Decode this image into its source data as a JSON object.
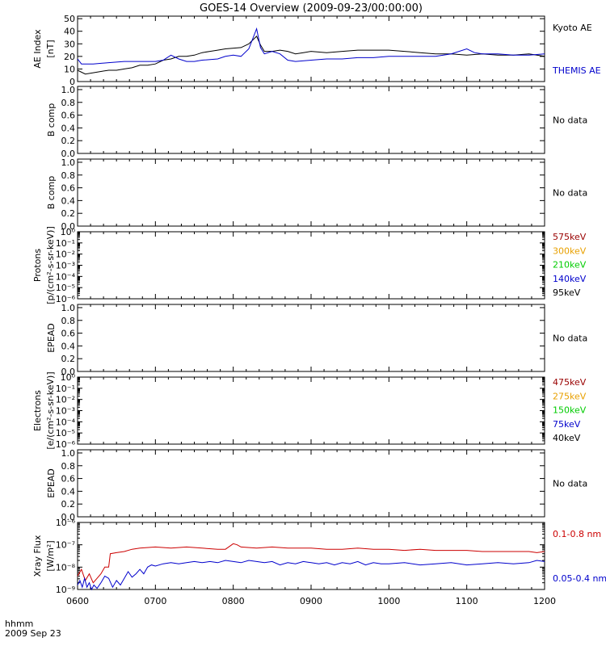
{
  "title": "GOES-14 Overview (2009-09-23/00:00:00)",
  "footer": {
    "time_label": "hhmm",
    "date_label": "2009 Sep 23"
  },
  "x_ticks": [
    "0600",
    "0700",
    "0800",
    "0900",
    "1000",
    "1100",
    "1200"
  ],
  "colors": {
    "black": "#000000",
    "blue": "#0000cc",
    "red": "#cc0000",
    "dark_red": "#990000",
    "orange": "#e8a000",
    "green": "#00cc00"
  },
  "chart_data": [
    {
      "type": "line",
      "ylabel_lines": [
        "AE Index",
        "[nT]"
      ],
      "yticks": [
        "0",
        "10",
        "20",
        "30",
        "40",
        "50"
      ],
      "ylim": [
        0,
        52
      ],
      "x_range": [
        "0600",
        "1200"
      ],
      "legend_placement": "right",
      "series": [
        {
          "name": "Kyoto AE",
          "color": "#000000",
          "points": [
            [
              6.0,
              9
            ],
            [
              6.1,
              6
            ],
            [
              6.2,
              7
            ],
            [
              6.3,
              8
            ],
            [
              6.4,
              9
            ],
            [
              6.5,
              9
            ],
            [
              6.6,
              10
            ],
            [
              6.7,
              11
            ],
            [
              6.8,
              13
            ],
            [
              6.9,
              13
            ],
            [
              7.0,
              14
            ],
            [
              7.1,
              17
            ],
            [
              7.2,
              18
            ],
            [
              7.3,
              20
            ],
            [
              7.4,
              20
            ],
            [
              7.5,
              21
            ],
            [
              7.6,
              23
            ],
            [
              7.7,
              24
            ],
            [
              7.8,
              25
            ],
            [
              7.9,
              26
            ],
            [
              8.1,
              27
            ],
            [
              8.2,
              30
            ],
            [
              8.3,
              36
            ],
            [
              8.35,
              29
            ],
            [
              8.4,
              24
            ],
            [
              8.5,
              24
            ],
            [
              8.6,
              25
            ],
            [
              8.7,
              24
            ],
            [
              8.8,
              22
            ],
            [
              8.9,
              23
            ],
            [
              9.0,
              24
            ],
            [
              9.2,
              23
            ],
            [
              9.4,
              24
            ],
            [
              9.6,
              25
            ],
            [
              9.8,
              25
            ],
            [
              10.0,
              25
            ],
            [
              10.2,
              24
            ],
            [
              10.4,
              23
            ],
            [
              10.6,
              22
            ],
            [
              10.8,
              22
            ],
            [
              11.0,
              21
            ],
            [
              11.2,
              22
            ],
            [
              11.4,
              21
            ],
            [
              11.6,
              21
            ],
            [
              11.8,
              22
            ],
            [
              12.0,
              20
            ]
          ]
        },
        {
          "name": "THEMIS AE",
          "color": "#0000cc",
          "points": [
            [
              6.0,
              18
            ],
            [
              6.05,
              14
            ],
            [
              6.2,
              14
            ],
            [
              6.4,
              15
            ],
            [
              6.6,
              16
            ],
            [
              6.8,
              16
            ],
            [
              7.0,
              16
            ],
            [
              7.1,
              17
            ],
            [
              7.2,
              21
            ],
            [
              7.3,
              18
            ],
            [
              7.4,
              16
            ],
            [
              7.5,
              16
            ],
            [
              7.6,
              17
            ],
            [
              7.8,
              18
            ],
            [
              7.9,
              20
            ],
            [
              8.0,
              21
            ],
            [
              8.1,
              20
            ],
            [
              8.2,
              26
            ],
            [
              8.3,
              42
            ],
            [
              8.35,
              27
            ],
            [
              8.4,
              22
            ],
            [
              8.5,
              24
            ],
            [
              8.6,
              22
            ],
            [
              8.7,
              17
            ],
            [
              8.8,
              16
            ],
            [
              9.0,
              17
            ],
            [
              9.2,
              18
            ],
            [
              9.4,
              18
            ],
            [
              9.6,
              19
            ],
            [
              9.8,
              19
            ],
            [
              10.0,
              20
            ],
            [
              10.2,
              20
            ],
            [
              10.4,
              20
            ],
            [
              10.6,
              20
            ],
            [
              10.8,
              22
            ],
            [
              11.0,
              26
            ],
            [
              11.1,
              23
            ],
            [
              11.2,
              22
            ],
            [
              11.4,
              22
            ],
            [
              11.6,
              21
            ],
            [
              11.8,
              21
            ],
            [
              12.0,
              22
            ]
          ]
        }
      ]
    },
    {
      "type": "line",
      "ylabel_lines": [
        "B comp"
      ],
      "yticks": [
        "0.0",
        "0.2",
        "0.4",
        "0.6",
        "0.8",
        "1.0"
      ],
      "ylim": [
        0,
        1.05
      ],
      "message": "No data"
    },
    {
      "type": "line",
      "ylabel_lines": [
        "B comp"
      ],
      "yticks": [
        "0.0",
        "0.2",
        "0.4",
        "0.6",
        "0.8",
        "1.0"
      ],
      "ylim": [
        0,
        1.05
      ],
      "message": "No data"
    },
    {
      "type": "line",
      "ylabel_lines": [
        "Protons",
        "[p/(cm²-s-sr-keV)]"
      ],
      "yticks": [
        "10⁻⁶",
        "10⁻⁵",
        "10⁻⁴",
        "10⁻³",
        "10⁻²",
        "10⁻¹",
        "10⁰"
      ],
      "ylim": [
        -6,
        0
      ],
      "scale": "log",
      "legend_placement": "right",
      "series": [
        {
          "name": "575keV",
          "color": "#990000"
        },
        {
          "name": "300keV",
          "color": "#e8a000"
        },
        {
          "name": "210keV",
          "color": "#00cc00"
        },
        {
          "name": "140keV",
          "color": "#0000cc"
        },
        {
          "name": "95keV",
          "color": "#000000"
        }
      ]
    },
    {
      "type": "line",
      "ylabel_lines": [
        "EPEAD"
      ],
      "yticks": [
        "0.0",
        "0.2",
        "0.4",
        "0.6",
        "0.8",
        "1.0"
      ],
      "ylim": [
        0,
        1.05
      ],
      "message": "No data"
    },
    {
      "type": "line",
      "ylabel_lines": [
        "Electrons",
        "[e/(cm²-s-sr-keV)]"
      ],
      "yticks": [
        "10⁻⁶",
        "10⁻⁵",
        "10⁻⁴",
        "10⁻³",
        "10⁻²",
        "10⁻¹",
        "10⁰"
      ],
      "ylim": [
        -6,
        0
      ],
      "scale": "log",
      "legend_placement": "right",
      "series": [
        {
          "name": "475keV",
          "color": "#990000"
        },
        {
          "name": "275keV",
          "color": "#e8a000"
        },
        {
          "name": "150keV",
          "color": "#00cc00"
        },
        {
          "name": "75keV",
          "color": "#0000cc"
        },
        {
          "name": "40keV",
          "color": "#000000"
        }
      ]
    },
    {
      "type": "line",
      "ylabel_lines": [
        "EPEAD"
      ],
      "yticks": [
        "0.0",
        "0.2",
        "0.4",
        "0.6",
        "0.8",
        "1.0"
      ],
      "ylim": [
        0,
        1.05
      ],
      "message": "No data"
    },
    {
      "type": "line",
      "ylabel_lines": [
        "Xray Flux",
        "[W/m²]"
      ],
      "yticks": [
        "10⁻⁹",
        "10⁻⁸",
        "10⁻⁷",
        "10⁻⁶"
      ],
      "ylim": [
        -9,
        -6
      ],
      "scale": "log",
      "legend_placement": "right",
      "series": [
        {
          "name": "0.1-0.8 nm",
          "color": "#cc0000",
          "points": [
            [
              6.0,
              -8.4
            ],
            [
              6.05,
              -8.1
            ],
            [
              6.1,
              -8.6
            ],
            [
              6.15,
              -8.3
            ],
            [
              6.2,
              -8.7
            ],
            [
              6.25,
              -8.5
            ],
            [
              6.3,
              -8.3
            ],
            [
              6.35,
              -8.0
            ],
            [
              6.4,
              -8.0
            ],
            [
              6.42,
              -7.4
            ],
            [
              6.5,
              -7.35
            ],
            [
              6.6,
              -7.3
            ],
            [
              6.7,
              -7.2
            ],
            [
              6.8,
              -7.15
            ],
            [
              7.0,
              -7.1
            ],
            [
              7.2,
              -7.15
            ],
            [
              7.4,
              -7.1
            ],
            [
              7.6,
              -7.15
            ],
            [
              7.8,
              -7.2
            ],
            [
              7.9,
              -7.2
            ],
            [
              8.0,
              -6.95
            ],
            [
              8.05,
              -7.0
            ],
            [
              8.1,
              -7.1
            ],
            [
              8.3,
              -7.15
            ],
            [
              8.5,
              -7.1
            ],
            [
              8.7,
              -7.15
            ],
            [
              9.0,
              -7.15
            ],
            [
              9.2,
              -7.2
            ],
            [
              9.4,
              -7.2
            ],
            [
              9.6,
              -7.15
            ],
            [
              9.8,
              -7.2
            ],
            [
              10.0,
              -7.2
            ],
            [
              10.2,
              -7.25
            ],
            [
              10.4,
              -7.2
            ],
            [
              10.6,
              -7.25
            ],
            [
              10.8,
              -7.25
            ],
            [
              11.0,
              -7.25
            ],
            [
              11.2,
              -7.3
            ],
            [
              11.4,
              -7.3
            ],
            [
              11.6,
              -7.3
            ],
            [
              11.8,
              -7.3
            ],
            [
              11.9,
              -7.35
            ],
            [
              12.0,
              -7.3
            ]
          ]
        },
        {
          "name": "0.05-0.4 nm",
          "color": "#0000cc",
          "points": [
            [
              6.0,
              -8.8
            ],
            [
              6.03,
              -8.6
            ],
            [
              6.06,
              -8.9
            ],
            [
              6.09,
              -8.5
            ],
            [
              6.12,
              -8.9
            ],
            [
              6.15,
              -8.7
            ],
            [
              6.18,
              -9.0
            ],
            [
              6.21,
              -8.8
            ],
            [
              6.25,
              -8.95
            ],
            [
              6.3,
              -8.7
            ],
            [
              6.35,
              -8.4
            ],
            [
              6.4,
              -8.5
            ],
            [
              6.45,
              -8.9
            ],
            [
              6.5,
              -8.6
            ],
            [
              6.55,
              -8.8
            ],
            [
              6.6,
              -8.5
            ],
            [
              6.65,
              -8.2
            ],
            [
              6.7,
              -8.45
            ],
            [
              6.75,
              -8.3
            ],
            [
              6.8,
              -8.1
            ],
            [
              6.85,
              -8.3
            ],
            [
              6.9,
              -8.0
            ],
            [
              6.95,
              -7.9
            ],
            [
              7.0,
              -7.95
            ],
            [
              7.1,
              -7.85
            ],
            [
              7.2,
              -7.8
            ],
            [
              7.3,
              -7.85
            ],
            [
              7.4,
              -7.8
            ],
            [
              7.5,
              -7.75
            ],
            [
              7.6,
              -7.8
            ],
            [
              7.7,
              -7.75
            ],
            [
              7.8,
              -7.8
            ],
            [
              7.9,
              -7.7
            ],
            [
              8.0,
              -7.75
            ],
            [
              8.1,
              -7.8
            ],
            [
              8.2,
              -7.7
            ],
            [
              8.3,
              -7.75
            ],
            [
              8.4,
              -7.8
            ],
            [
              8.5,
              -7.75
            ],
            [
              8.6,
              -7.9
            ],
            [
              8.7,
              -7.8
            ],
            [
              8.8,
              -7.85
            ],
            [
              8.9,
              -7.75
            ],
            [
              9.0,
              -7.8
            ],
            [
              9.1,
              -7.85
            ],
            [
              9.2,
              -7.8
            ],
            [
              9.3,
              -7.9
            ],
            [
              9.4,
              -7.8
            ],
            [
              9.5,
              -7.85
            ],
            [
              9.6,
              -7.75
            ],
            [
              9.7,
              -7.9
            ],
            [
              9.8,
              -7.8
            ],
            [
              9.9,
              -7.85
            ],
            [
              10.0,
              -7.85
            ],
            [
              10.2,
              -7.8
            ],
            [
              10.4,
              -7.9
            ],
            [
              10.6,
              -7.85
            ],
            [
              10.8,
              -7.8
            ],
            [
              11.0,
              -7.9
            ],
            [
              11.2,
              -7.85
            ],
            [
              11.4,
              -7.8
            ],
            [
              11.6,
              -7.85
            ],
            [
              11.8,
              -7.8
            ],
            [
              11.9,
              -7.7
            ],
            [
              12.0,
              -7.75
            ]
          ]
        }
      ]
    }
  ]
}
